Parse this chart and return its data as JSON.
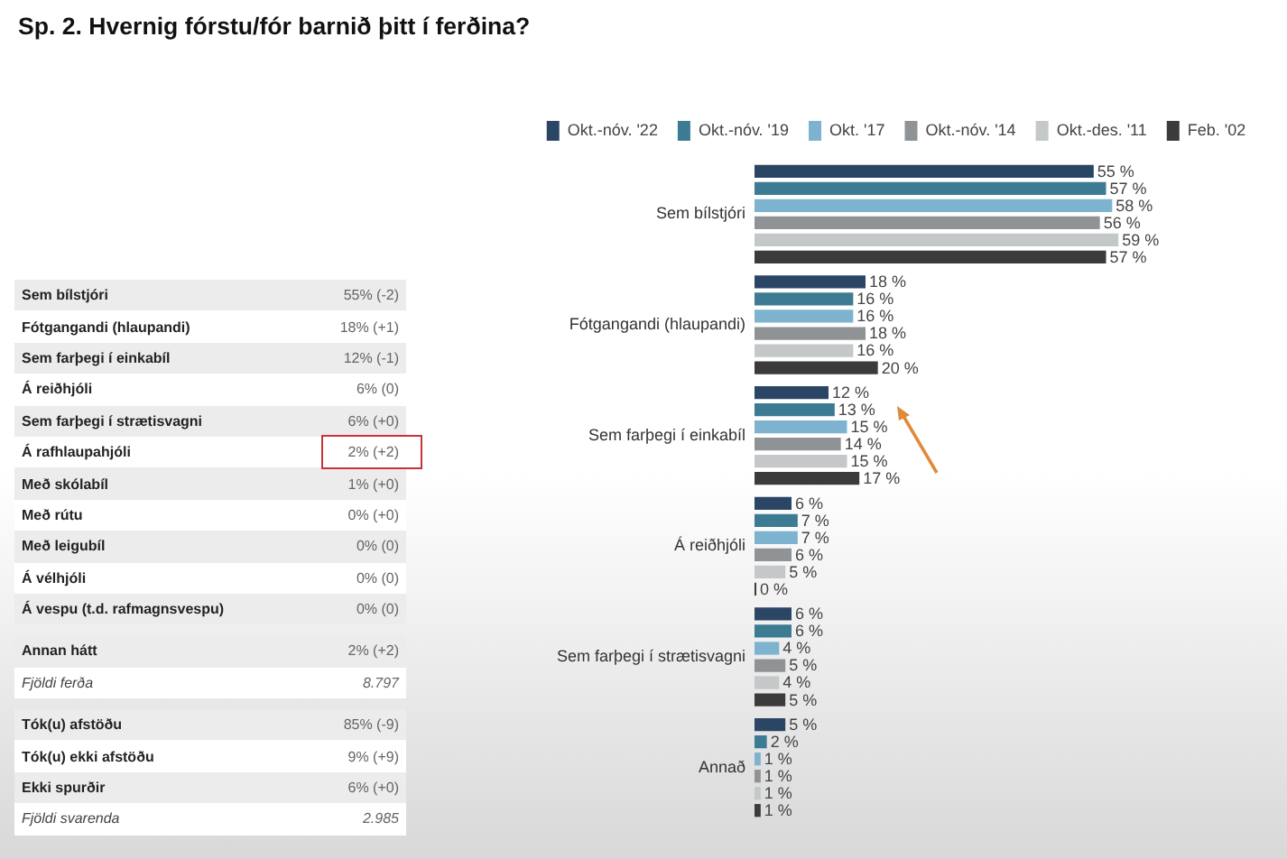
{
  "chart_data": [
    {
      "type": "other",
      "title": "Sp. 2. Hvernig fórstu/fór barnið þitt í ferðina?",
      "categories": [
        "Sem bílstjóri",
        "Fótgangandi (hlaupandi)",
        "Sem farþegi í einkabíl",
        "Á reiðhjóli",
        "Sem farþegi í strætisvagni",
        "Á rafhlaupahjóli",
        "Með skólabíl",
        "Með rútu",
        "Með leigubíl",
        "Á vélhjóli",
        "Á vespu (t.d. rafmagnsvespu)",
        "Annan hátt",
        "Fjöldi ferða",
        "Tók(u) afstöðu",
        "Tók(u) ekki afstöðu",
        "Ekki spurðir",
        "Fjöldi svarenda"
      ],
      "value_labels": [
        "55% (-2)",
        "18% (+1)",
        "12% (-1)",
        "6% (0)",
        "6% (+0)",
        "2% (+2)",
        "1% (+0)",
        "0% (+0)",
        "0% (0)",
        "0% (0)",
        "0% (0)",
        "2% (+2)",
        "8.797",
        "85% (-9)",
        "9% (+9)",
        "6% (+0)",
        "2.985"
      ]
    },
    {
      "type": "bar",
      "orientation": "horizontal",
      "categories": [
        "Sem bílstjóri",
        "Fótgangandi (hlaupandi)",
        "Sem farþegi í einkabíl",
        "Á reiðhjóli",
        "Sem farþegi í strætisvagni",
        "Annað"
      ],
      "series": [
        {
          "name": "Okt.-nóv. '22",
          "color": "#2b4565",
          "values": [
            55,
            18,
            12,
            6,
            6,
            5
          ],
          "value_labels": [
            "55 %",
            "18 %",
            "12 %",
            "6 %",
            "6 %",
            "5 %"
          ]
        },
        {
          "name": "Okt.-nóv. '19",
          "color": "#3d7b93",
          "values": [
            57,
            16,
            13,
            7,
            6,
            2
          ],
          "value_labels": [
            "57 %",
            "16 %",
            "13 %",
            "7 %",
            "6 %",
            "2 %"
          ]
        },
        {
          "name": "Okt. '17",
          "color": "#7db3cf",
          "values": [
            58,
            16,
            15,
            7,
            4,
            1
          ],
          "value_labels": [
            "58 %",
            "16 %",
            "15 %",
            "7 %",
            "4 %",
            "1 %"
          ]
        },
        {
          "name": "Okt.-nóv. '14",
          "color": "#909396",
          "values": [
            56,
            18,
            14,
            6,
            5,
            1
          ],
          "value_labels": [
            "56 %",
            "18 %",
            "14 %",
            "6 %",
            "5 %",
            "1 %"
          ]
        },
        {
          "name": "Okt.-des. '11",
          "color": "#c4c8c9",
          "values": [
            59,
            16,
            15,
            5,
            4,
            1
          ],
          "value_labels": [
            "59 %",
            "16 %",
            "15 %",
            "5 %",
            "4 %",
            "1 %"
          ]
        },
        {
          "name": "Feb. '02",
          "color": "#3b3b3b",
          "values": [
            57,
            20,
            17,
            0,
            5,
            1
          ],
          "value_labels": [
            "57 %",
            "20 %",
            "17 %",
            "0 %",
            "5 %",
            "1 %"
          ]
        }
      ],
      "legend": "top",
      "grid": false,
      "tick_labels": "y"
    }
  ]
}
